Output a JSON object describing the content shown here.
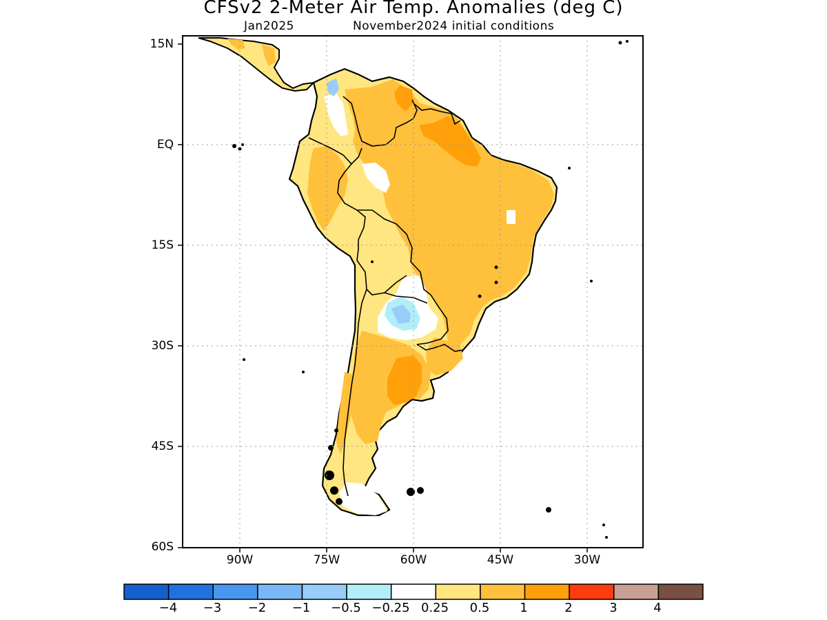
{
  "title": "CFSv2 2-Meter Air Temp. Anomalies (deg C)",
  "valid_month": "Jan2025",
  "initial_conditions": "November2024 initial conditions",
  "lat_labels": [
    "15N",
    "EQ",
    "15S",
    "30S",
    "45S",
    "60S"
  ],
  "lon_labels": [
    "90W",
    "75W",
    "60W",
    "45W",
    "30W"
  ],
  "grid_lines": "dotted",
  "colorbar": {
    "colors": [
      "#1560d0",
      "#2171e0",
      "#4797ef",
      "#7ab7f6",
      "#98cdf9",
      "#b2eef8",
      "#ffffff",
      "#ffe680",
      "#ffc03c",
      "#ffa00a",
      "#ff3c10",
      "#c8a096",
      "#7a5044"
    ],
    "labels": [
      "−4",
      "−3",
      "−2",
      "−1",
      "−0.5",
      "−0.25",
      "0.25",
      "0.5",
      "1",
      "2",
      "3",
      "4"
    ]
  }
}
